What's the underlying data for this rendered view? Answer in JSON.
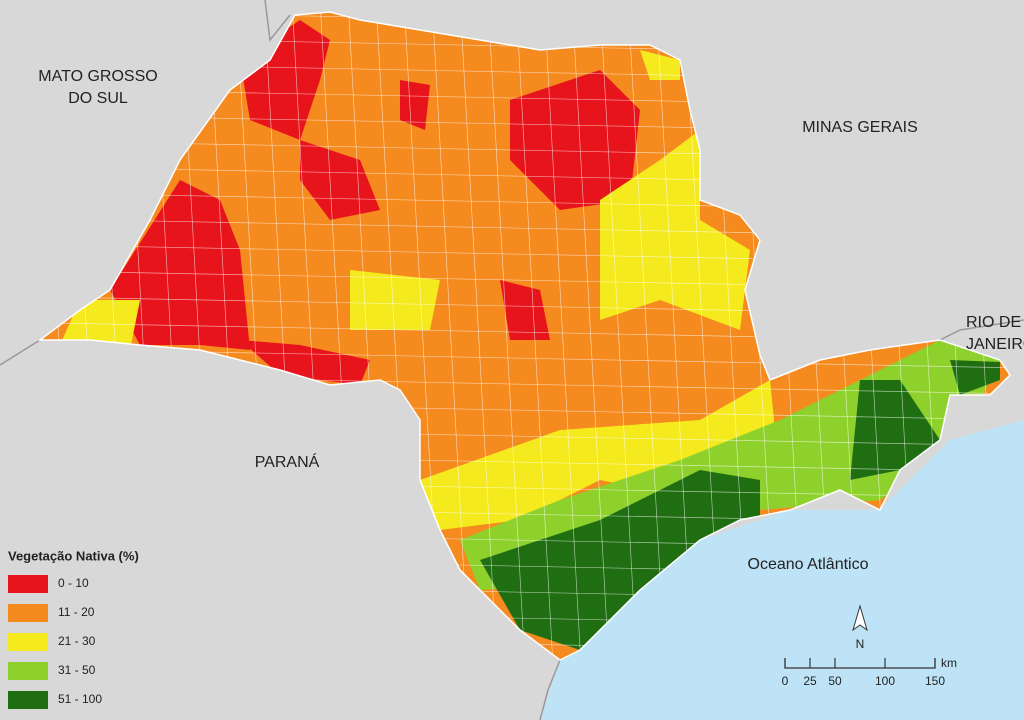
{
  "map_labels": {
    "mato_grosso_do_sul": [
      "MATO GROSSO",
      "DO SUL"
    ],
    "minas_gerais": [
      "MINAS GERAIS"
    ],
    "rio_de_janeiro": [
      "RIO DE",
      "JANEIRO"
    ],
    "parana": [
      "PARANÁ"
    ],
    "ocean": [
      "Oceano Atlântico"
    ]
  },
  "legend": {
    "title": "Vegetação Nativa (%)",
    "items": [
      {
        "label": "0 - 10",
        "color": "#e8141b"
      },
      {
        "label": "11 - 20",
        "color": "#f58a1f"
      },
      {
        "label": "21 - 30",
        "color": "#f5ea1e"
      },
      {
        "label": "31 - 50",
        "color": "#8fd12c"
      },
      {
        "label": "51 - 100",
        "color": "#1f6e12"
      }
    ]
  },
  "scale": {
    "ticks": [
      0,
      25,
      50,
      100,
      150
    ],
    "unit": "km"
  },
  "north": "N"
}
